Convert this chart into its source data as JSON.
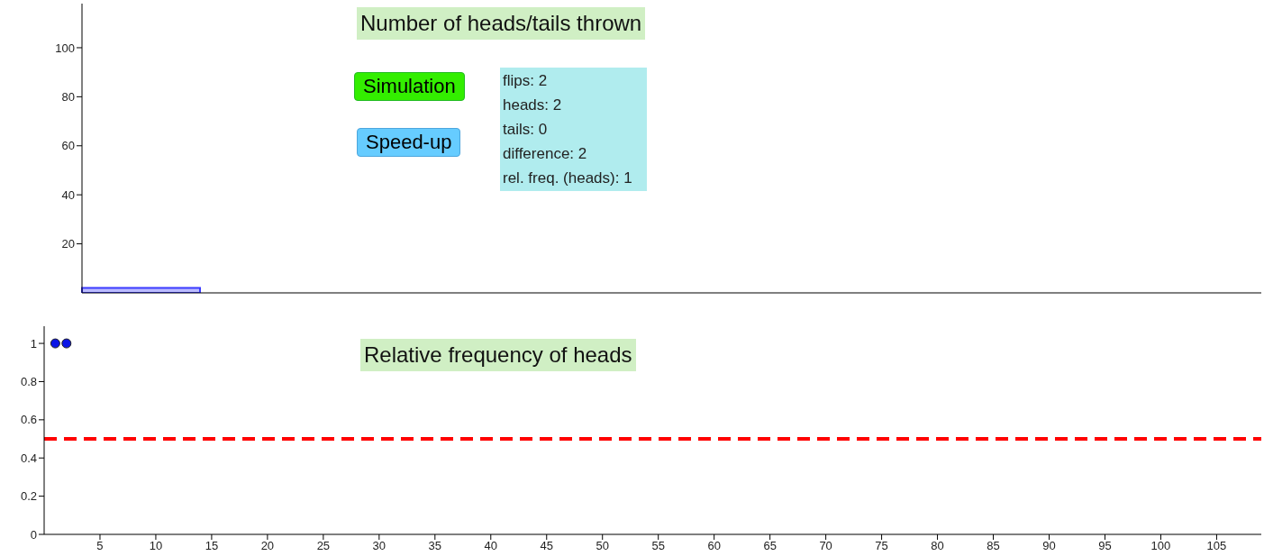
{
  "chart_data": [
    {
      "type": "bar",
      "title": "Number of heads/tails thrown",
      "categories": [
        null,
        null
      ],
      "values": [
        2,
        0
      ],
      "colors": [
        "#3b3bff",
        "#33cc33"
      ],
      "ylim": [
        0,
        118
      ],
      "yticks": [
        20,
        40,
        60,
        80,
        100
      ],
      "tick_labels": "y",
      "grid": false,
      "legend": false,
      "annotations": [
        "Simulation",
        "Speed-up",
        "flips: 2",
        "heads: 2",
        "tails: 0",
        "difference: 2",
        "rel. freq. (heads): 1"
      ]
    },
    {
      "type": "scatter",
      "title": "Relative frequency of heads",
      "x": [
        1,
        2
      ],
      "values": [
        1,
        1
      ],
      "color": "#0a14e6",
      "marker": "circle",
      "xlim": [
        0,
        109
      ],
      "xticks": [
        5,
        10,
        15,
        20,
        25,
        30,
        35,
        40,
        45,
        50,
        55,
        60,
        65,
        70,
        75,
        80,
        85,
        90,
        95,
        100,
        105
      ],
      "ylim": [
        0,
        1.09
      ],
      "yticks": [
        0,
        0.2,
        0.4,
        0.6,
        0.8,
        1
      ],
      "grid": false,
      "legend": false,
      "ref_lines": [
        {
          "axis": "y",
          "value": 0.5,
          "color": "#ff0000",
          "line_style": "dashed"
        }
      ]
    }
  ]
}
